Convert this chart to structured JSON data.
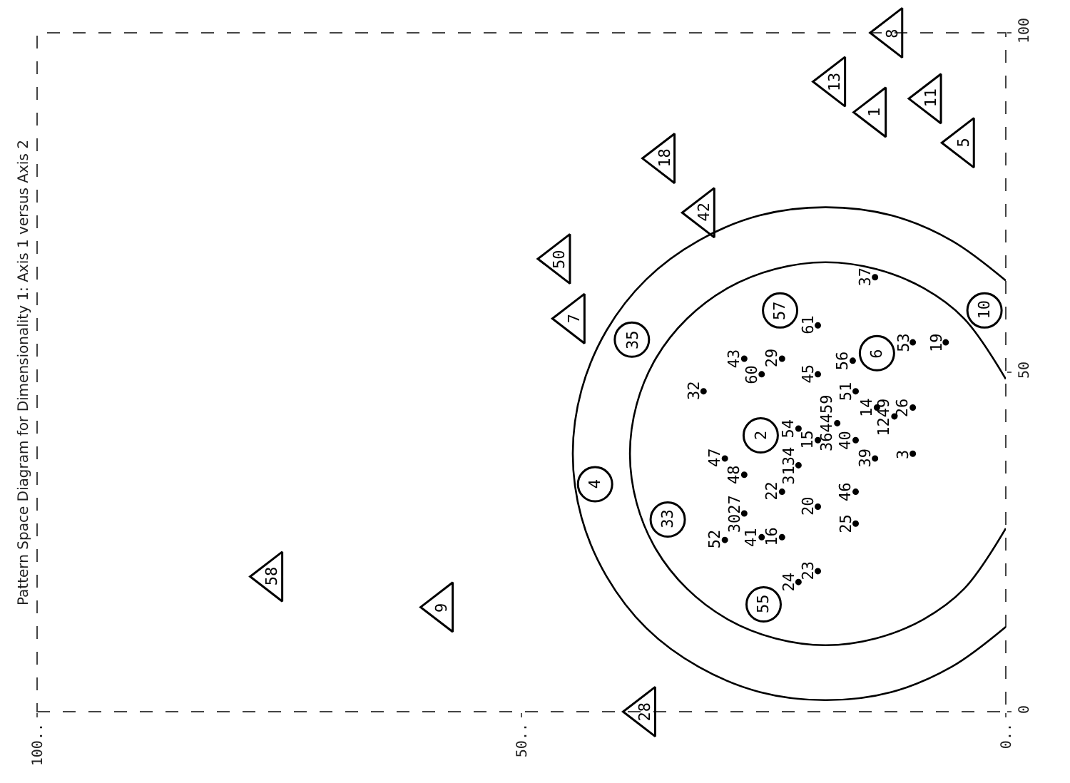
{
  "chart_data": {
    "type": "scatter",
    "title": "Pattern Space Diagram for Dimensionality 1: Axis 1 versus Axis 2",
    "xlim": [
      100,
      0
    ],
    "xticks": [
      {
        "value": 100,
        "label": "100.."
      },
      {
        "value": 50,
        "label": "50.."
      },
      {
        "value": 0,
        "label": "0.."
      }
    ],
    "ylim": [
      0,
      100
    ],
    "yticks": [
      0,
      50,
      100
    ],
    "grid": false,
    "series": [
      {
        "marker": "triangle",
        "color": "#000000",
        "x": [
          75.8,
          58.2,
          37.3,
          44.6,
          46.1,
          35.3,
          31.2,
          11.8,
          17.7,
          13.5,
          7.8,
          4.4
        ],
        "values": [
          19.9,
          15.4,
          0,
          57.9,
          66.7,
          81.5,
          73.5,
          100,
          92.8,
          88.3,
          90.3,
          83.8
        ]
      },
      {
        "marker": "circle",
        "color": "#000000",
        "x": [
          38.6,
          23.3,
          2.2,
          13.3,
          25.3,
          42.4,
          34.9,
          25.0
        ],
        "values": [
          54.8,
          59.1,
          59.1,
          52.8,
          40.7,
          33.5,
          28.3,
          15.8
        ]
      },
      {
        "marker": "none",
        "color": "#000000",
        "x": [
          31.2,
          27.0,
          25.2,
          23.1,
          19.4,
          13.5,
          19.4,
          15.8,
          9.6,
          6.2,
          15.5,
          13.3,
          11.5,
          9.6,
          17.4,
          21.4,
          19.4,
          15.5,
          13.5,
          9.6,
          21.4,
          29.0,
          27.0,
          23.1,
          15.5,
          19.4,
          27.0,
          15.5,
          29.0,
          25.2,
          23.1,
          21.4,
          19.4
        ],
        "values": [
          47.2,
          52.0,
          49.7,
          52.0,
          56.9,
          64.0,
          49.7,
          51.7,
          54.4,
          54.4,
          47.2,
          44.8,
          43.5,
          44.8,
          42.5,
          41.7,
          40.0,
          40.0,
          37.3,
          38.0,
          36.3,
          37.3,
          34.9,
          32.4,
          32.4,
          30.2,
          29.2,
          27.7,
          25.3,
          25.7,
          25.7,
          19.1,
          20.7
        ]
      },
      {
        "type": "line",
        "color": "#000000",
        "x": [
          0.0,
          5.6,
          11.8,
          18.6,
          25.4,
          31.7,
          37.1,
          41.2,
          43.8,
          44.7,
          43.8,
          41.2,
          37.1,
          31.7,
          25.4,
          18.6,
          11.8,
          5.6,
          0.0
        ],
        "values": [
          12.5,
          6.6,
          2.9,
          1.7,
          2.9,
          6.6,
          12.3,
          19.9,
          28.6,
          38,
          47.4,
          56.2,
          63.7,
          69.4,
          73.1,
          74.3,
          73.1,
          69.4,
          63.5
        ]
      },
      {
        "type": "line",
        "color": "#000000",
        "x": [
          0.0,
          4.3,
          8.5,
          13.4,
          18.6,
          23.8,
          28.7,
          32.9,
          36.1,
          38.1,
          38.8,
          38.1,
          36.1,
          32.9,
          28.7,
          23.8,
          18.6,
          13.4,
          8.5,
          4.3,
          0.0
        ],
        "values": [
          27.0,
          18.1,
          13.6,
          10.8,
          9.8,
          10.8,
          13.6,
          18.1,
          23.9,
          30.7,
          38,
          45.3,
          52.1,
          57.9,
          62.4,
          65.2,
          66.2,
          65.2,
          62.4,
          57.9,
          49.0
        ]
      }
    ],
    "annotations": [
      {
        "text": "58",
        "x": 75.8,
        "y": 19.9
      },
      {
        "text": "9",
        "x": 58.2,
        "y": 15.4
      },
      {
        "text": "28",
        "x": 37.3,
        "y": 0
      },
      {
        "text": "7",
        "x": 44.6,
        "y": 57.9
      },
      {
        "text": "50",
        "x": 46.1,
        "y": 66.7
      },
      {
        "text": "18",
        "x": 35.3,
        "y": 81.5
      },
      {
        "text": "42",
        "x": 31.2,
        "y": 73.5
      },
      {
        "text": "8",
        "x": 11.8,
        "y": 100
      },
      {
        "text": "13",
        "x": 17.7,
        "y": 92.8
      },
      {
        "text": "1",
        "x": 13.5,
        "y": 88.3
      },
      {
        "text": "11",
        "x": 7.8,
        "y": 90.3
      },
      {
        "text": "5",
        "x": 4.4,
        "y": 83.8
      },
      {
        "text": "35",
        "x": 38.6,
        "y": 54.8
      },
      {
        "text": "57",
        "x": 23.3,
        "y": 59.1
      },
      {
        "text": "10",
        "x": 2.2,
        "y": 59.1
      },
      {
        "text": "6",
        "x": 13.3,
        "y": 52.8
      },
      {
        "text": "2",
        "x": 25.3,
        "y": 40.7
      },
      {
        "text": "4",
        "x": 42.4,
        "y": 33.5
      },
      {
        "text": "33",
        "x": 34.9,
        "y": 28.3
      },
      {
        "text": "55",
        "x": 25.0,
        "y": 15.8
      },
      {
        "text": "32",
        "x": 31.2,
        "y": 47.2
      },
      {
        "text": "43",
        "x": 27.0,
        "y": 52.0
      },
      {
        "text": "60",
        "x": 25.2,
        "y": 49.7
      },
      {
        "text": "29",
        "x": 23.1,
        "y": 52.0
      },
      {
        "text": "61",
        "x": 19.4,
        "y": 56.9
      },
      {
        "text": "37",
        "x": 13.5,
        "y": 64.0
      },
      {
        "text": "45",
        "x": 19.4,
        "y": 49.7
      },
      {
        "text": "56",
        "x": 15.8,
        "y": 51.7
      },
      {
        "text": "53",
        "x": 9.6,
        "y": 54.4
      },
      {
        "text": "19",
        "x": 6.2,
        "y": 54.4
      },
      {
        "text": "51",
        "x": 15.5,
        "y": 47.2
      },
      {
        "text": "14",
        "x": 13.3,
        "y": 44.8
      },
      {
        "text": "1249",
        "x": 11.5,
        "y": 43.5
      },
      {
        "text": "26",
        "x": 9.6,
        "y": 44.8
      },
      {
        "text": "364459",
        "x": 17.4,
        "y": 42.5
      },
      {
        "text": "54",
        "x": 21.4,
        "y": 41.7
      },
      {
        "text": "15",
        "x": 19.4,
        "y": 40.0
      },
      {
        "text": "40",
        "x": 15.5,
        "y": 40.0
      },
      {
        "text": "39",
        "x": 13.5,
        "y": 37.3
      },
      {
        "text": "3",
        "x": 9.6,
        "y": 38.0
      },
      {
        "text": "3134",
        "x": 21.4,
        "y": 36.3
      },
      {
        "text": "47",
        "x": 29.0,
        "y": 37.3
      },
      {
        "text": "48",
        "x": 27.0,
        "y": 34.9
      },
      {
        "text": "22",
        "x": 23.1,
        "y": 32.4
      },
      {
        "text": "46",
        "x": 15.5,
        "y": 32.4
      },
      {
        "text": "20",
        "x": 19.4,
        "y": 30.2
      },
      {
        "text": "3027",
        "x": 27.0,
        "y": 29.2
      },
      {
        "text": "25",
        "x": 15.5,
        "y": 27.7
      },
      {
        "text": "52",
        "x": 29.0,
        "y": 25.3
      },
      {
        "text": "41",
        "x": 25.2,
        "y": 25.7
      },
      {
        "text": "16",
        "x": 23.1,
        "y": 25.7
      },
      {
        "text": "24",
        "x": 21.4,
        "y": 19.1
      },
      {
        "text": "23",
        "x": 19.4,
        "y": 20.7
      }
    ]
  }
}
